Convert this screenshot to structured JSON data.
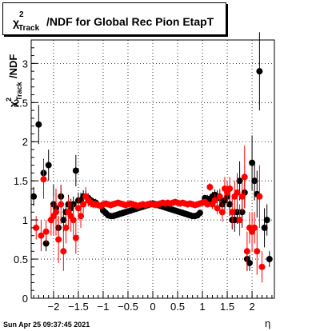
{
  "title": {
    "symbol": "χ",
    "superscript": "2",
    "subscript": "Track",
    "rest": "/NDF for Global Rec Pion EtapT"
  },
  "timestamp": "Sun Apr 25 09:37:45 2021",
  "colors": {
    "black_series": "#000000",
    "red_series": "#ff0000",
    "frame": "#000000"
  },
  "chart_data": {
    "type": "scatter",
    "title": "χ²_Track/NDF for Global Rec Pion EtapT",
    "xlabel": "η",
    "ylabel": "χ²_Track/NDF",
    "xlim": [
      -2.45,
      2.45
    ],
    "ylim": [
      0,
      3.3
    ],
    "grid": true,
    "x_ticks": [
      {
        "v": -2,
        "label": "−2"
      },
      {
        "v": -1.5,
        "label": "−1.5"
      },
      {
        "v": -1,
        "label": "−1"
      },
      {
        "v": -0.5,
        "label": "−0.5"
      },
      {
        "v": 0,
        "label": "0"
      },
      {
        "v": 0.5,
        "label": "0.5"
      },
      {
        "v": 1,
        "label": "1"
      },
      {
        "v": 1.5,
        "label": "1.5"
      },
      {
        "v": 2,
        "label": "2"
      }
    ],
    "y_ticks": [
      {
        "v": 0,
        "label": "0"
      },
      {
        "v": 0.5,
        "label": "0.5"
      },
      {
        "v": 1,
        "label": "1"
      },
      {
        "v": 1.5,
        "label": "1.5"
      },
      {
        "v": 2,
        "label": "2"
      },
      {
        "v": 2.5,
        "label": "2.5"
      },
      {
        "v": 3,
        "label": "3"
      }
    ],
    "series": [
      {
        "color": "#000000",
        "points": [
          [
            -2.4,
            1.3,
            0.12
          ],
          [
            -2.3,
            2.22,
            0.25
          ],
          [
            -2.2,
            1.6,
            0.18
          ],
          [
            -2.15,
            0.7,
            0.1
          ],
          [
            -2.1,
            1.7,
            0.2
          ],
          [
            -2.0,
            1.2,
            0.25
          ],
          [
            -1.95,
            1.15,
            0.2
          ],
          [
            -1.9,
            0.9,
            0.15
          ],
          [
            -1.85,
            1.3,
            0.15
          ],
          [
            -1.8,
            1.0,
            0.15
          ],
          [
            -1.75,
            1.1,
            0.12
          ],
          [
            -1.7,
            1.2,
            0.12
          ],
          [
            -1.65,
            1.15,
            0.12
          ],
          [
            -1.6,
            1.2,
            0.1
          ],
          [
            -1.55,
            1.63,
            0.2
          ],
          [
            -1.5,
            1.25,
            0.1
          ],
          [
            -1.45,
            1.25,
            0.1
          ],
          [
            -1.4,
            1.3,
            0.08
          ],
          [
            -1.35,
            1.3,
            0.08
          ],
          [
            -1.3,
            1.28,
            0.06
          ],
          [
            -1.25,
            1.25,
            0.05
          ],
          [
            -1.2,
            1.23,
            0.05
          ],
          [
            -1.15,
            1.22,
            0.05
          ],
          [
            -1.05,
            1.18,
            0.03
          ],
          [
            -1.0,
            1.12,
            0
          ],
          [
            -0.95,
            1.09,
            0
          ],
          [
            -0.9,
            1.06,
            0
          ],
          [
            -0.85,
            1.05,
            0
          ],
          [
            -0.8,
            1.05,
            0
          ],
          [
            -0.75,
            1.06,
            0
          ],
          [
            -0.7,
            1.07,
            0
          ],
          [
            -0.65,
            1.08,
            0
          ],
          [
            -0.6,
            1.09,
            0
          ],
          [
            -0.55,
            1.1,
            0
          ],
          [
            -0.5,
            1.11,
            0
          ],
          [
            -0.45,
            1.12,
            0
          ],
          [
            -0.4,
            1.13,
            0
          ],
          [
            -0.35,
            1.14,
            0
          ],
          [
            -0.3,
            1.15,
            0
          ],
          [
            -0.25,
            1.16,
            0
          ],
          [
            -0.2,
            1.17,
            0
          ],
          [
            -0.15,
            1.18,
            0
          ],
          [
            -0.1,
            1.19,
            0
          ],
          [
            -0.05,
            1.2,
            0
          ],
          [
            0.0,
            1.21,
            0
          ],
          [
            0.05,
            1.2,
            0
          ],
          [
            0.1,
            1.19,
            0
          ],
          [
            0.15,
            1.18,
            0
          ],
          [
            0.2,
            1.17,
            0
          ],
          [
            0.25,
            1.16,
            0
          ],
          [
            0.3,
            1.15,
            0
          ],
          [
            0.35,
            1.14,
            0
          ],
          [
            0.4,
            1.13,
            0
          ],
          [
            0.45,
            1.12,
            0
          ],
          [
            0.5,
            1.11,
            0
          ],
          [
            0.55,
            1.1,
            0
          ],
          [
            0.6,
            1.09,
            0
          ],
          [
            0.65,
            1.08,
            0
          ],
          [
            0.7,
            1.07,
            0
          ],
          [
            0.75,
            1.06,
            0
          ],
          [
            0.8,
            1.05,
            0
          ],
          [
            0.85,
            1.05,
            0
          ],
          [
            0.9,
            1.06,
            0
          ],
          [
            0.95,
            1.09,
            0
          ],
          [
            1.05,
            1.28,
            0.04
          ],
          [
            1.1,
            1.27,
            0.05
          ],
          [
            1.15,
            1.25,
            0.05
          ],
          [
            1.2,
            1.3,
            0.06
          ],
          [
            1.25,
            1.32,
            0.07
          ],
          [
            1.3,
            1.3,
            0.08
          ],
          [
            1.35,
            1.28,
            0.1
          ],
          [
            1.4,
            1.2,
            0.1
          ],
          [
            1.45,
            1.25,
            0.12
          ],
          [
            1.5,
            1.3,
            0.12
          ],
          [
            1.55,
            1.2,
            0.15
          ],
          [
            1.6,
            1.0,
            0.12
          ],
          [
            1.65,
            1.0,
            0.15
          ],
          [
            1.7,
            1.1,
            0.15
          ],
          [
            1.75,
            1.5,
            0.25
          ],
          [
            1.8,
            1.1,
            0.2
          ],
          [
            1.85,
            1.35,
            0.2
          ],
          [
            1.9,
            0.5,
            0.15
          ],
          [
            1.95,
            0.45,
            0.1
          ],
          [
            2.0,
            1.73,
            0.35
          ],
          [
            2.05,
            1.5,
            0.25
          ],
          [
            2.1,
            1.33,
            0.3
          ],
          [
            2.15,
            2.9,
            0.5
          ],
          [
            2.25,
            0.9,
            0.25
          ],
          [
            2.3,
            1.0,
            0.2
          ],
          [
            2.35,
            0.5,
            0.1
          ]
        ]
      },
      {
        "color": "#ff0000",
        "points": [
          [
            -2.35,
            0.9,
            0.15
          ],
          [
            -2.25,
            0.8,
            0.2
          ],
          [
            -2.2,
            1.52,
            0.25
          ],
          [
            -2.15,
            0.85,
            0.15
          ],
          [
            -2.05,
            1.0,
            0.2
          ],
          [
            -2.0,
            1.05,
            0.25
          ],
          [
            -1.95,
            1.1,
            0.3
          ],
          [
            -1.9,
            0.75,
            0.3
          ],
          [
            -1.85,
            1.2,
            0.25
          ],
          [
            -1.8,
            0.6,
            0.25
          ],
          [
            -1.75,
            0.9,
            0.2
          ],
          [
            -1.7,
            1.1,
            0.2
          ],
          [
            -1.65,
            1.05,
            0.2
          ],
          [
            -1.6,
            1.0,
            0.2
          ],
          [
            -1.55,
            0.77,
            0.2
          ],
          [
            -1.5,
            1.15,
            0.15
          ],
          [
            -1.45,
            1.05,
            0.15
          ],
          [
            -1.4,
            1.2,
            0.12
          ],
          [
            -1.35,
            1.3,
            0.12
          ],
          [
            -1.3,
            1.25,
            0.08
          ],
          [
            -1.25,
            1.22,
            0.06
          ],
          [
            -1.2,
            1.2,
            0.05
          ],
          [
            -1.15,
            1.2,
            0.05
          ],
          [
            -1.1,
            1.19,
            0.04
          ],
          [
            -1.05,
            1.18,
            0.03
          ],
          [
            -1.0,
            1.2,
            0.02
          ],
          [
            -0.95,
            1.21,
            0
          ],
          [
            -0.9,
            1.2,
            0
          ],
          [
            -0.85,
            1.19,
            0
          ],
          [
            -0.8,
            1.2,
            0
          ],
          [
            -0.75,
            1.21,
            0
          ],
          [
            -0.7,
            1.22,
            0
          ],
          [
            -0.65,
            1.21,
            0
          ],
          [
            -0.6,
            1.2,
            0
          ],
          [
            -0.55,
            1.19,
            0
          ],
          [
            -0.5,
            1.2,
            0
          ],
          [
            -0.45,
            1.21,
            0
          ],
          [
            -0.4,
            1.2,
            0
          ],
          [
            -0.35,
            1.19,
            0
          ],
          [
            -0.3,
            1.18,
            0
          ],
          [
            -0.25,
            1.19,
            0
          ],
          [
            -0.2,
            1.2,
            0
          ],
          [
            -0.15,
            1.19,
            0
          ],
          [
            -0.1,
            1.2,
            0
          ],
          [
            -0.05,
            1.21,
            0
          ],
          [
            0.0,
            1.2,
            0
          ],
          [
            0.05,
            1.19,
            0
          ],
          [
            0.1,
            1.2,
            0
          ],
          [
            0.15,
            1.21,
            0
          ],
          [
            0.2,
            1.22,
            0
          ],
          [
            0.25,
            1.21,
            0
          ],
          [
            0.3,
            1.22,
            0
          ],
          [
            0.35,
            1.21,
            0
          ],
          [
            0.4,
            1.22,
            0
          ],
          [
            0.45,
            1.23,
            0
          ],
          [
            0.5,
            1.22,
            0
          ],
          [
            0.55,
            1.21,
            0
          ],
          [
            0.6,
            1.22,
            0
          ],
          [
            0.65,
            1.21,
            0
          ],
          [
            0.7,
            1.2,
            0
          ],
          [
            0.75,
            1.21,
            0
          ],
          [
            0.8,
            1.2,
            0
          ],
          [
            0.85,
            1.19,
            0
          ],
          [
            0.9,
            1.2,
            0
          ],
          [
            0.95,
            1.21,
            0
          ],
          [
            1.0,
            1.22,
            0.02
          ],
          [
            1.05,
            1.23,
            0.03
          ],
          [
            1.1,
            1.2,
            0.04
          ],
          [
            1.15,
            1.42,
            0.05
          ],
          [
            1.2,
            1.2,
            0.06
          ],
          [
            1.25,
            1.25,
            0.08
          ],
          [
            1.3,
            1.15,
            0.08
          ],
          [
            1.35,
            1.3,
            0.1
          ],
          [
            1.4,
            1.1,
            0.12
          ],
          [
            1.45,
            1.4,
            0.15
          ],
          [
            1.5,
            1.35,
            0.15
          ],
          [
            1.55,
            1.4,
            0.15
          ],
          [
            1.6,
            1.1,
            0.2
          ],
          [
            1.65,
            1.3,
            0.2
          ],
          [
            1.7,
            1.35,
            0.25
          ],
          [
            1.75,
            1.0,
            0.2
          ],
          [
            1.8,
            1.3,
            0.2
          ],
          [
            1.85,
            1.55,
            0.4
          ],
          [
            1.9,
            0.6,
            0.25
          ],
          [
            1.95,
            0.9,
            0.2
          ],
          [
            2.0,
            0.85,
            0.25
          ],
          [
            2.05,
            0.9,
            0.2
          ],
          [
            2.1,
            0.6,
            0.3
          ],
          [
            2.15,
            1.3,
            0.4
          ],
          [
            2.2,
            0.4,
            0.2
          ]
        ]
      }
    ]
  }
}
